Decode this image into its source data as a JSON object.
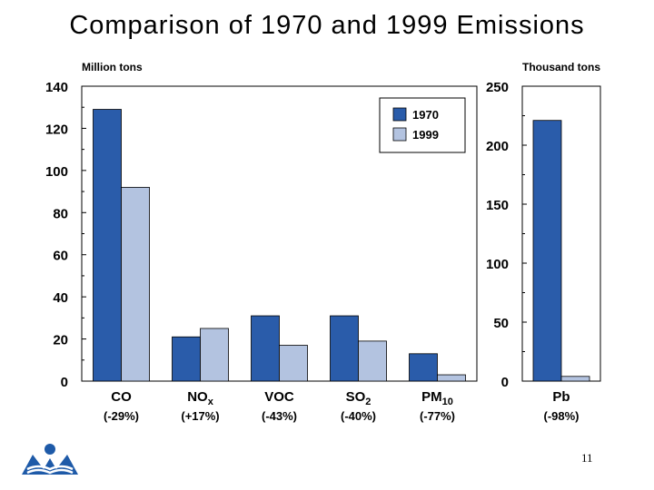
{
  "slide": {
    "title": "Comparison of 1970 and 1999 Emissions",
    "page_number": "11"
  },
  "colors": {
    "series_1970": "#2a5caa",
    "series_1999": "#b3c3e0",
    "axis": "#000000",
    "logo": "#1e5aa8"
  },
  "chart_data": [
    {
      "type": "bar",
      "title": "Comparison of 1970 and 1999 Emissions",
      "ylabel": "Million tons",
      "ylim": [
        0,
        140
      ],
      "yticks": [
        "0",
        "20",
        "40",
        "60",
        "80",
        "100",
        "120",
        "140"
      ],
      "categories": [
        {
          "label": "CO",
          "sub": "",
          "change": "(-29%)"
        },
        {
          "label": "NO",
          "sub": "x",
          "change": "(+17%)"
        },
        {
          "label": "VOC",
          "sub": "",
          "change": "(-43%)"
        },
        {
          "label": "SO",
          "sub": "2",
          "change": "(-40%)"
        },
        {
          "label": "PM",
          "sub": "10",
          "change": "(-77%)"
        }
      ],
      "series": [
        {
          "name": "1970",
          "values": [
            129,
            21,
            31,
            31,
            13
          ]
        },
        {
          "name": "1999",
          "values": [
            92,
            25,
            17,
            19,
            3
          ]
        }
      ],
      "legend": {
        "position": "top-right",
        "entries": [
          "1970",
          "1999"
        ]
      }
    },
    {
      "type": "bar",
      "ylabel": "Thousand tons",
      "ylim": [
        0,
        250
      ],
      "yticks": [
        "0",
        "50",
        "100",
        "150",
        "200",
        "250"
      ],
      "categories": [
        {
          "label": "Pb",
          "sub": "",
          "change": "(-98%)"
        }
      ],
      "series": [
        {
          "name": "1970",
          "values": [
            221
          ]
        },
        {
          "name": "1999",
          "values": [
            4
          ]
        }
      ]
    }
  ]
}
